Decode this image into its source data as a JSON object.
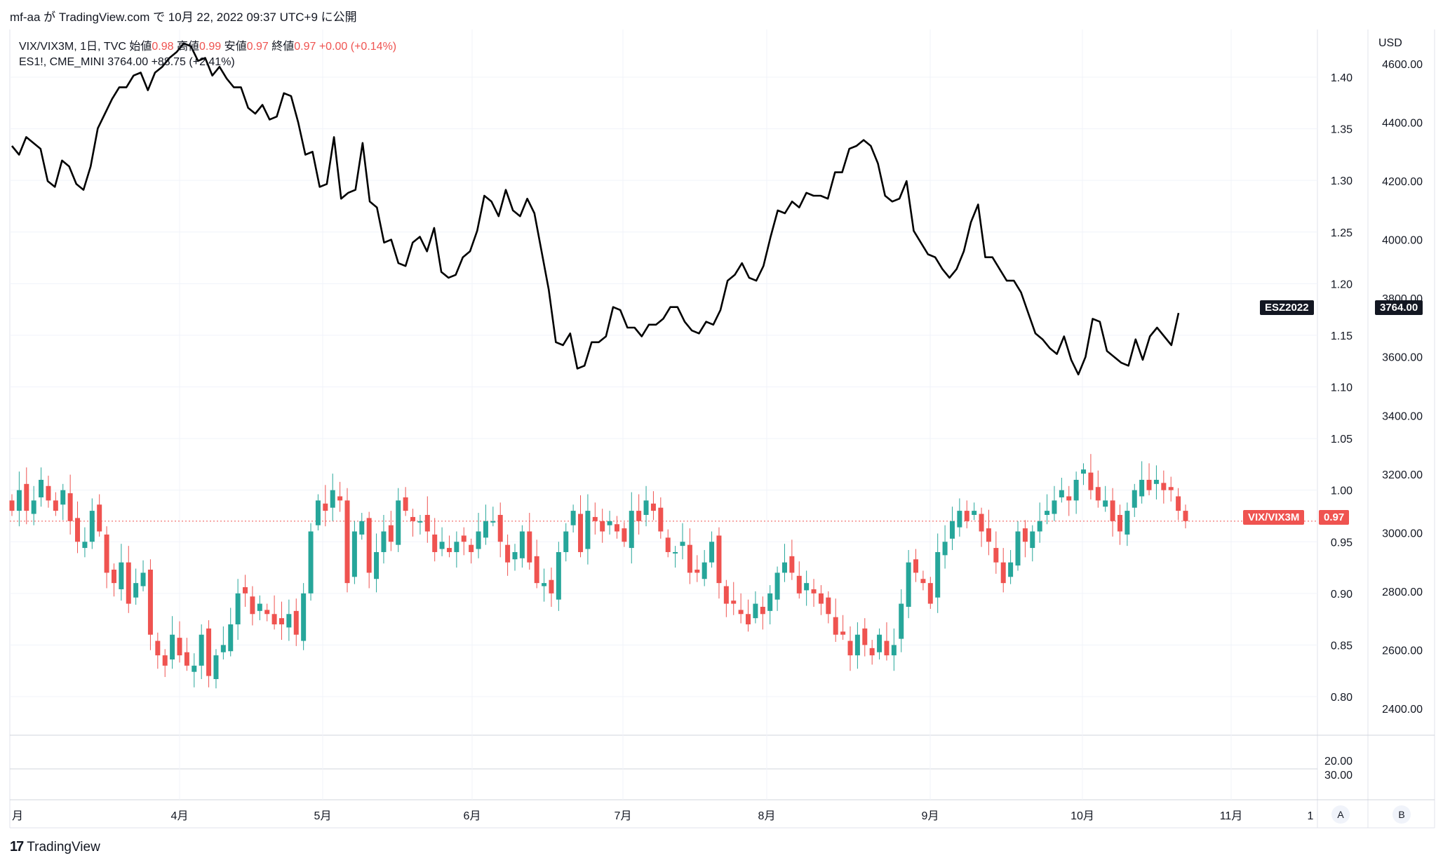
{
  "header": {
    "publish_line": "mf-aa が TradingView.com で 10月 22, 2022 09:37 UTC+9 に公開"
  },
  "legend": {
    "line1": {
      "symbol": "VIX/VIX3M, 1日, TVC",
      "open_label": "始値",
      "open_value": "0.98",
      "high_label": "高値",
      "high_value": "0.99",
      "low_label": "安値",
      "low_value": "0.97",
      "close_label": "終値",
      "close_value": "0.97",
      "change": "+0.00 (+0.14%)"
    },
    "line2": {
      "symbol": "ES1!, CME_MINI",
      "value": "3764.00",
      "change": "+88.75 (+2.41%)"
    }
  },
  "axes": {
    "inner_scale_ticks": [
      "1.40",
      "1.35",
      "1.30",
      "1.25",
      "1.20",
      "1.15",
      "1.10",
      "1.05",
      "1.00",
      "0.95",
      "0.90",
      "0.85",
      "0.80"
    ],
    "outer_scale_unit": "USD",
    "outer_scale_ticks": [
      "4600.00",
      "4400.00",
      "4200.00",
      "4000.00",
      "3800.00",
      "3600.00",
      "3400.00",
      "3200.00",
      "3000.00",
      "2800.00",
      "2600.00",
      "2400.00"
    ],
    "lower_pane_ticks": [
      "20.00",
      "30.00"
    ],
    "x_ticks": [
      "月",
      "4月",
      "5月",
      "6月",
      "7月",
      "8月",
      "9月",
      "10月",
      "11月",
      "1"
    ],
    "scale_buttons": [
      "A",
      "B"
    ]
  },
  "tags": {
    "es_name": "ESZ2022",
    "es_value": "3764.00",
    "ratio_name": "VIX/VIX3M",
    "ratio_value": "0.97"
  },
  "colors": {
    "up": "#26a69a",
    "down": "#ef5350",
    "line": "#000000",
    "grid": "#f0f3fa"
  },
  "footer": {
    "brand": "TradingView",
    "logo_glyph": "17"
  },
  "chart_data": {
    "type": "line",
    "title": "",
    "series": [
      {
        "name": "ESZ2022",
        "axis": "outer",
        "values": [
          4320,
          4290,
          4350,
          4330,
          4310,
          4200,
          4180,
          4270,
          4250,
          4190,
          4170,
          4250,
          4380,
          4430,
          4480,
          4520,
          4520,
          4560,
          4570,
          4510,
          4570,
          4590,
          4620,
          4640,
          4670,
          4660,
          4610,
          4620,
          4560,
          4590,
          4550,
          4520,
          4520,
          4450,
          4430,
          4460,
          4410,
          4420,
          4500,
          4490,
          4400,
          4290,
          4300,
          4180,
          4190,
          4350,
          4140,
          4160,
          4170,
          4330,
          4130,
          4110,
          3990,
          4000,
          3920,
          3910,
          3990,
          4010,
          3960,
          4040,
          3890,
          3870,
          3880,
          3940,
          3960,
          4030,
          4150,
          4130,
          4080,
          4170,
          4100,
          4080,
          4140,
          4090,
          3960,
          3830,
          3650,
          3640,
          3680,
          3560,
          3570,
          3650,
          3650,
          3670,
          3770,
          3760,
          3700,
          3700,
          3670,
          3710,
          3710,
          3730,
          3770,
          3770,
          3720,
          3690,
          3680,
          3720,
          3710,
          3760,
          3860,
          3880,
          3920,
          3870,
          3860,
          3910,
          4010,
          4100,
          4090,
          4130,
          4110,
          4160,
          4150,
          4150,
          4140,
          4230,
          4230,
          4310,
          4320,
          4340,
          4320,
          4260,
          4150,
          4130,
          4140,
          4200,
          4030,
          3990,
          3950,
          3940,
          3900,
          3870,
          3900,
          3960,
          4060,
          4120,
          3940,
          3940,
          3900,
          3860,
          3860,
          3820,
          3750,
          3680,
          3660,
          3630,
          3610,
          3670,
          3590,
          3540,
          3600,
          3730,
          3720,
          3620,
          3600,
          3580,
          3570,
          3660,
          3590,
          3670,
          3700,
          3670,
          3640,
          3750
        ]
      },
      {
        "name": "VIX/VIX3M",
        "axis": "inner",
        "type": "candlestick",
        "closes": [
          0.98,
          1.0,
          0.98,
          0.99,
          1.01,
          0.99,
          0.98,
          1.0,
          0.97,
          0.95,
          0.95,
          0.98,
          0.96,
          0.92,
          0.91,
          0.93,
          0.89,
          0.91,
          0.92,
          0.86,
          0.84,
          0.83,
          0.86,
          0.84,
          0.83,
          0.83,
          0.86,
          0.82,
          0.84,
          0.85,
          0.87,
          0.9,
          0.9,
          0.88,
          0.89,
          0.88,
          0.87,
          0.87,
          0.88,
          0.86,
          0.9,
          0.96,
          0.99,
          0.98,
          1.0,
          0.99,
          0.91,
          0.96,
          0.97,
          0.92,
          0.94,
          0.96,
          0.95,
          0.99,
          0.98,
          0.97,
          0.97,
          0.96,
          0.94,
          0.95,
          0.94,
          0.95,
          0.95,
          0.94,
          0.96,
          0.97,
          0.97,
          0.95,
          0.93,
          0.94,
          0.96,
          0.93,
          0.91,
          0.91,
          0.9,
          0.94,
          0.96,
          0.98,
          0.94,
          0.98,
          0.97,
          0.96,
          0.97,
          0.96,
          0.95,
          0.98,
          0.97,
          0.99,
          0.98,
          0.96,
          0.94,
          0.94,
          0.95,
          0.92,
          0.92,
          0.93,
          0.95,
          0.91,
          0.89,
          0.89,
          0.88,
          0.87,
          0.89,
          0.88,
          0.9,
          0.92,
          0.93,
          0.92,
          0.9,
          0.91,
          0.9,
          0.89,
          0.88,
          0.86,
          0.86,
          0.84,
          0.86,
          0.85,
          0.84,
          0.86,
          0.84,
          0.85,
          0.89,
          0.93,
          0.92,
          0.91,
          0.89,
          0.94,
          0.95,
          0.97,
          0.98,
          0.97,
          0.98,
          0.96,
          0.95,
          0.93,
          0.91,
          0.93,
          0.96,
          0.95,
          0.96,
          0.97,
          0.98,
          0.99,
          1.0,
          0.99,
          1.01,
          1.02,
          1.0,
          0.99,
          0.99,
          0.97,
          0.96,
          0.98,
          1.0,
          1.01,
          1.0,
          1.01,
          1.0,
          1.0,
          0.98,
          0.97
        ]
      }
    ],
    "ylim_inner": [
      0.77,
      1.44
    ],
    "ylim_outer": [
      2200,
      4700
    ],
    "grid": true,
    "legend": "top-left"
  }
}
